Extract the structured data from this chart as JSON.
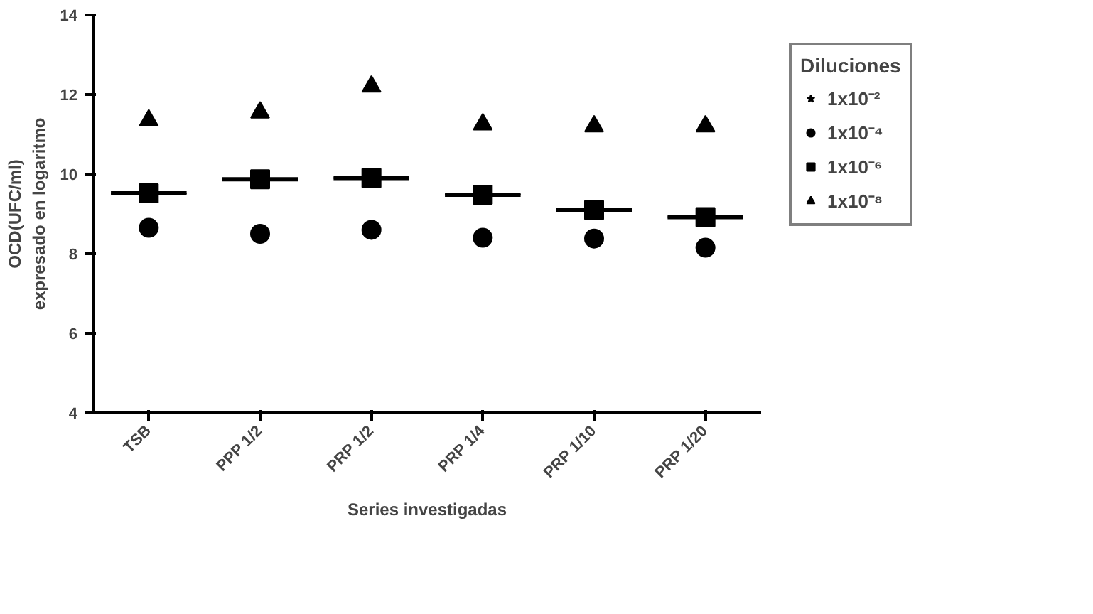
{
  "chart_data": {
    "type": "scatter",
    "xlabel": "Series investigadas",
    "ylabel": "OCD(UFC/ml)\nexpresado en logaritmo",
    "legend_title": "Diluciones",
    "legend": "right",
    "grid": false,
    "categories": [
      "TSB",
      "PPP 1/2",
      "PRP 1/2",
      "PRP 1/4",
      "PRP 1/10",
      "PRP 1/20"
    ],
    "ylim": [
      4,
      14
    ],
    "yticks": [
      4,
      6,
      8,
      10,
      12,
      14
    ],
    "series": [
      {
        "name": "1x10⁻²",
        "color": "#000000",
        "marker": "star",
        "values": [
          null,
          null,
          null,
          null,
          null,
          null
        ]
      },
      {
        "name": "1x10⁻⁴",
        "color": "#000000",
        "marker": "circle",
        "values": [
          8.65,
          8.5,
          8.6,
          8.4,
          8.38,
          8.15
        ]
      },
      {
        "name": "1x10⁻⁶",
        "color": "#000000",
        "marker": "square",
        "values": [
          9.52,
          9.87,
          9.9,
          9.48,
          9.1,
          8.92
        ]
      },
      {
        "name": "1x10⁻⁸",
        "color": "#000000",
        "marker": "triangle",
        "values": [
          11.35,
          11.55,
          12.2,
          11.25,
          11.2,
          11.2
        ]
      },
      {
        "type": "box",
        "color": "#000000",
        "boxes": [
          {
            "low": 9.52,
            "q1": 9.52,
            "median": 9.52,
            "q3": 9.52,
            "high": 9.52
          },
          {
            "low": 9.87,
            "q1": 9.87,
            "median": 9.87,
            "q3": 9.87,
            "high": 9.87
          },
          {
            "low": 9.9,
            "q1": 9.9,
            "median": 9.9,
            "q3": 9.9,
            "high": 9.9
          },
          {
            "low": 9.48,
            "q1": 9.48,
            "median": 9.48,
            "q3": 9.48,
            "high": 9.48
          },
          {
            "low": 9.1,
            "q1": 9.1,
            "median": 9.1,
            "q3": 9.1,
            "high": 9.1
          },
          {
            "low": 8.92,
            "q1": 8.92,
            "median": 8.92,
            "q3": 8.92,
            "high": 8.92
          }
        ]
      }
    ]
  }
}
